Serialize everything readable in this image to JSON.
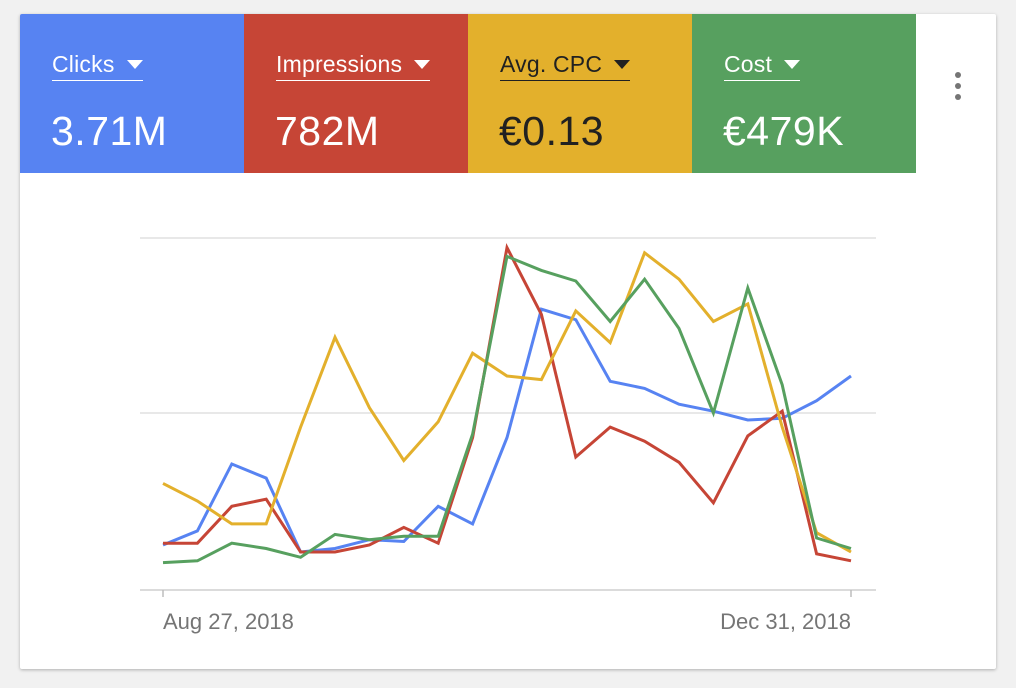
{
  "metrics": [
    {
      "label": "Clicks",
      "value": "3.71M",
      "bg": "#5783f2",
      "fg": "#ffffff"
    },
    {
      "label": "Impressions",
      "value": "782M",
      "bg": "#c64536",
      "fg": "#ffffff"
    },
    {
      "label": "Avg. CPC",
      "value": "€0.13",
      "bg": "#e3b02c",
      "fg": "#212121"
    },
    {
      "label": "Cost",
      "value": "€479K",
      "bg": "#57a05f",
      "fg": "#ffffff"
    }
  ],
  "more_icon": "more-vert-icon",
  "chart_data": {
    "type": "line",
    "x_range": [
      "2018-08-27",
      "2018-12-31"
    ],
    "x_ticks": [
      "Aug 27, 2018",
      "Dec 31, 2018"
    ],
    "y_range": [
      0,
      100
    ],
    "normalized": true,
    "grid": true,
    "legend": "none",
    "series": [
      {
        "name": "Clicks",
        "color": "#5783f2",
        "values": [
          25,
          33,
          71,
          63,
          21,
          23,
          28,
          27,
          47,
          37,
          86,
          159,
          153,
          118,
          114,
          105,
          101,
          96,
          97,
          107,
          121
        ]
      },
      {
        "name": "Impressions",
        "color": "#c64536",
        "values": [
          26,
          26,
          47,
          51,
          21,
          21,
          25,
          35,
          26,
          86,
          194,
          156,
          75,
          92,
          84,
          72,
          49,
          87,
          101,
          20,
          16
        ]
      },
      {
        "name": "Avg. CPC",
        "color": "#e3b02c",
        "values": [
          60,
          50,
          37,
          37,
          92,
          143,
          103,
          73,
          95,
          134,
          121,
          119,
          158,
          140,
          191,
          176,
          152,
          162,
          92,
          32,
          21
        ]
      },
      {
        "name": "Cost",
        "color": "#57a05f",
        "values": [
          15,
          16,
          26,
          23,
          18,
          31,
          28,
          30,
          30,
          88,
          189,
          181,
          175,
          152,
          176,
          148,
          100,
          171,
          116,
          29,
          23
        ]
      }
    ]
  }
}
